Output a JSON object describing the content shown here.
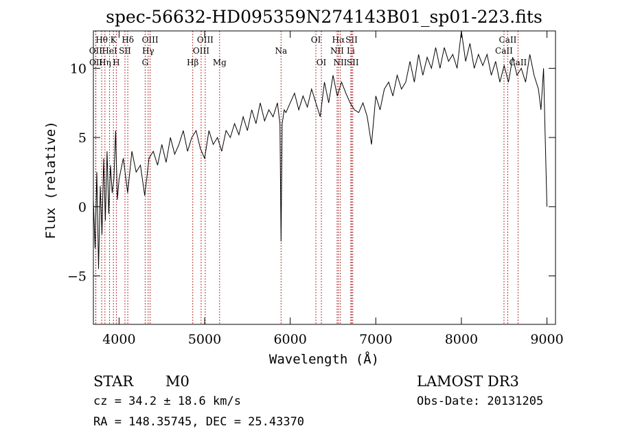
{
  "chart_data": {
    "type": "line",
    "title": "spec-56632-HD095359N274143B01_sp01-223.fits",
    "xlabel": "Wavelength (Å)",
    "ylabel": "Flux (relative)",
    "xlim": [
      3700,
      9100
    ],
    "ylim": [
      -8.5,
      12.7
    ],
    "x_ticks": [
      4000,
      5000,
      6000,
      7000,
      8000,
      9000
    ],
    "x_tick_labels": [
      "4000",
      "5000",
      "6000",
      "7000",
      "8000",
      "9000"
    ],
    "y_ticks": [
      -5,
      0,
      5,
      10
    ],
    "y_tick_labels": [
      "−5",
      "0",
      "5",
      "10"
    ],
    "series": [
      {
        "name": "flux",
        "x": [
          3700,
          3720,
          3740,
          3760,
          3780,
          3800,
          3820,
          3840,
          3860,
          3880,
          3900,
          3920,
          3940,
          3960,
          3980,
          4000,
          4050,
          4100,
          4150,
          4200,
          4250,
          4300,
          4350,
          4400,
          4450,
          4500,
          4550,
          4600,
          4650,
          4700,
          4750,
          4800,
          4850,
          4900,
          4950,
          5000,
          5050,
          5100,
          5150,
          5200,
          5250,
          5300,
          5350,
          5400,
          5450,
          5500,
          5550,
          5600,
          5650,
          5700,
          5750,
          5800,
          5850,
          5880,
          5893,
          5906,
          5930,
          5950,
          6000,
          6050,
          6100,
          6150,
          6200,
          6250,
          6300,
          6350,
          6400,
          6450,
          6500,
          6550,
          6600,
          6650,
          6700,
          6750,
          6800,
          6850,
          6900,
          6950,
          7000,
          7050,
          7100,
          7150,
          7200,
          7250,
          7300,
          7350,
          7400,
          7450,
          7500,
          7550,
          7600,
          7650,
          7700,
          7750,
          7800,
          7850,
          7900,
          7950,
          8000,
          8050,
          8100,
          8150,
          8200,
          8250,
          8300,
          8350,
          8400,
          8450,
          8500,
          8550,
          8600,
          8650,
          8700,
          8750,
          8800,
          8850,
          8900,
          8930,
          8960,
          8980,
          9000
        ],
        "y": [
          0.5,
          -3.0,
          2.5,
          -4.5,
          1.5,
          -2.0,
          3.5,
          -1.0,
          4.0,
          -0.5,
          3.0,
          1.0,
          2.0,
          5.5,
          0.5,
          2.0,
          3.5,
          1.0,
          4.0,
          2.5,
          3.0,
          0.8,
          3.5,
          4.0,
          3.0,
          4.5,
          3.2,
          5.0,
          3.8,
          4.5,
          5.5,
          4.0,
          5.0,
          5.5,
          4.2,
          3.5,
          5.5,
          4.5,
          5.0,
          4.0,
          5.5,
          5.0,
          6.0,
          5.2,
          6.5,
          5.5,
          7.0,
          6.0,
          7.5,
          6.2,
          7.0,
          6.5,
          7.5,
          6.0,
          -2.5,
          6.0,
          7.0,
          6.8,
          7.5,
          8.2,
          7.0,
          8.0,
          7.2,
          8.5,
          7.5,
          6.5,
          9.0,
          7.5,
          9.5,
          8.0,
          9.0,
          8.2,
          7.5,
          7.0,
          6.8,
          7.5,
          6.5,
          4.5,
          8.0,
          7.0,
          8.5,
          9.0,
          8.0,
          9.5,
          8.5,
          9.0,
          10.5,
          9.0,
          11.0,
          9.5,
          10.8,
          10.0,
          11.5,
          10.0,
          11.5,
          10.5,
          11.0,
          10.0,
          12.7,
          10.5,
          11.8,
          10.0,
          11.0,
          10.2,
          11.0,
          9.5,
          10.5,
          9.0,
          10.2,
          9.0,
          10.8,
          9.5,
          10.0,
          9.0,
          11.0,
          9.5,
          8.5,
          7.0,
          10.0,
          5.0,
          0.0
        ]
      }
    ],
    "annotation_lines": [
      {
        "name": "Hθ",
        "x": 3797,
        "row": 1
      },
      {
        "name": "OII",
        "x": 3727,
        "row": 2
      },
      {
        "name": "OII",
        "x": 3729,
        "row": 3
      },
      {
        "name": "K",
        "x": 3934,
        "row": 1
      },
      {
        "name": "H",
        "x": 3968,
        "row": 3
      },
      {
        "name": "Hη",
        "x": 3835,
        "row": 3
      },
      {
        "name": "HeI",
        "x": 3889,
        "row": 2
      },
      {
        "name": "SII",
        "x": 4069,
        "row": 2
      },
      {
        "name": "Hδ",
        "x": 4102,
        "row": 1
      },
      {
        "name": "OIII",
        "x": 4363,
        "row": 1
      },
      {
        "name": "Hγ",
        "x": 4340,
        "row": 2
      },
      {
        "name": "G",
        "x": 4305,
        "row": 3
      },
      {
        "name": "Hβ",
        "x": 4861,
        "row": 3
      },
      {
        "name": "OIII",
        "x": 5007,
        "row": 1
      },
      {
        "name": "OIII",
        "x": 4959,
        "row": 2
      },
      {
        "name": "Mg",
        "x": 5175,
        "row": 3
      },
      {
        "name": "Na",
        "x": 5893,
        "row": 2
      },
      {
        "name": "OI",
        "x": 6300,
        "row": 1
      },
      {
        "name": "OI",
        "x": 6364,
        "row": 3
      },
      {
        "name": "Hα",
        "x": 6563,
        "row": 1
      },
      {
        "name": "NII",
        "x": 6548,
        "row": 2
      },
      {
        "name": "NII",
        "x": 6584,
        "row": 3
      },
      {
        "name": "SII",
        "x": 6717,
        "row": 1
      },
      {
        "name": "Li",
        "x": 6708,
        "row": 2
      },
      {
        "name": "SII",
        "x": 6731,
        "row": 3
      },
      {
        "name": "CaII",
        "x": 8542,
        "row": 1
      },
      {
        "name": "CaII",
        "x": 8498,
        "row": 2
      },
      {
        "name": "CaII",
        "x": 8662,
        "row": 3
      }
    ]
  },
  "info": {
    "class": "STAR",
    "subclass": "M0",
    "survey": "LAMOST DR3",
    "cz": "cz = 34.2 ± 18.6 km/s",
    "obs_date": "Obs-Date: 20131205",
    "coords": "RA = 148.35745, DEC =  25.43370"
  }
}
